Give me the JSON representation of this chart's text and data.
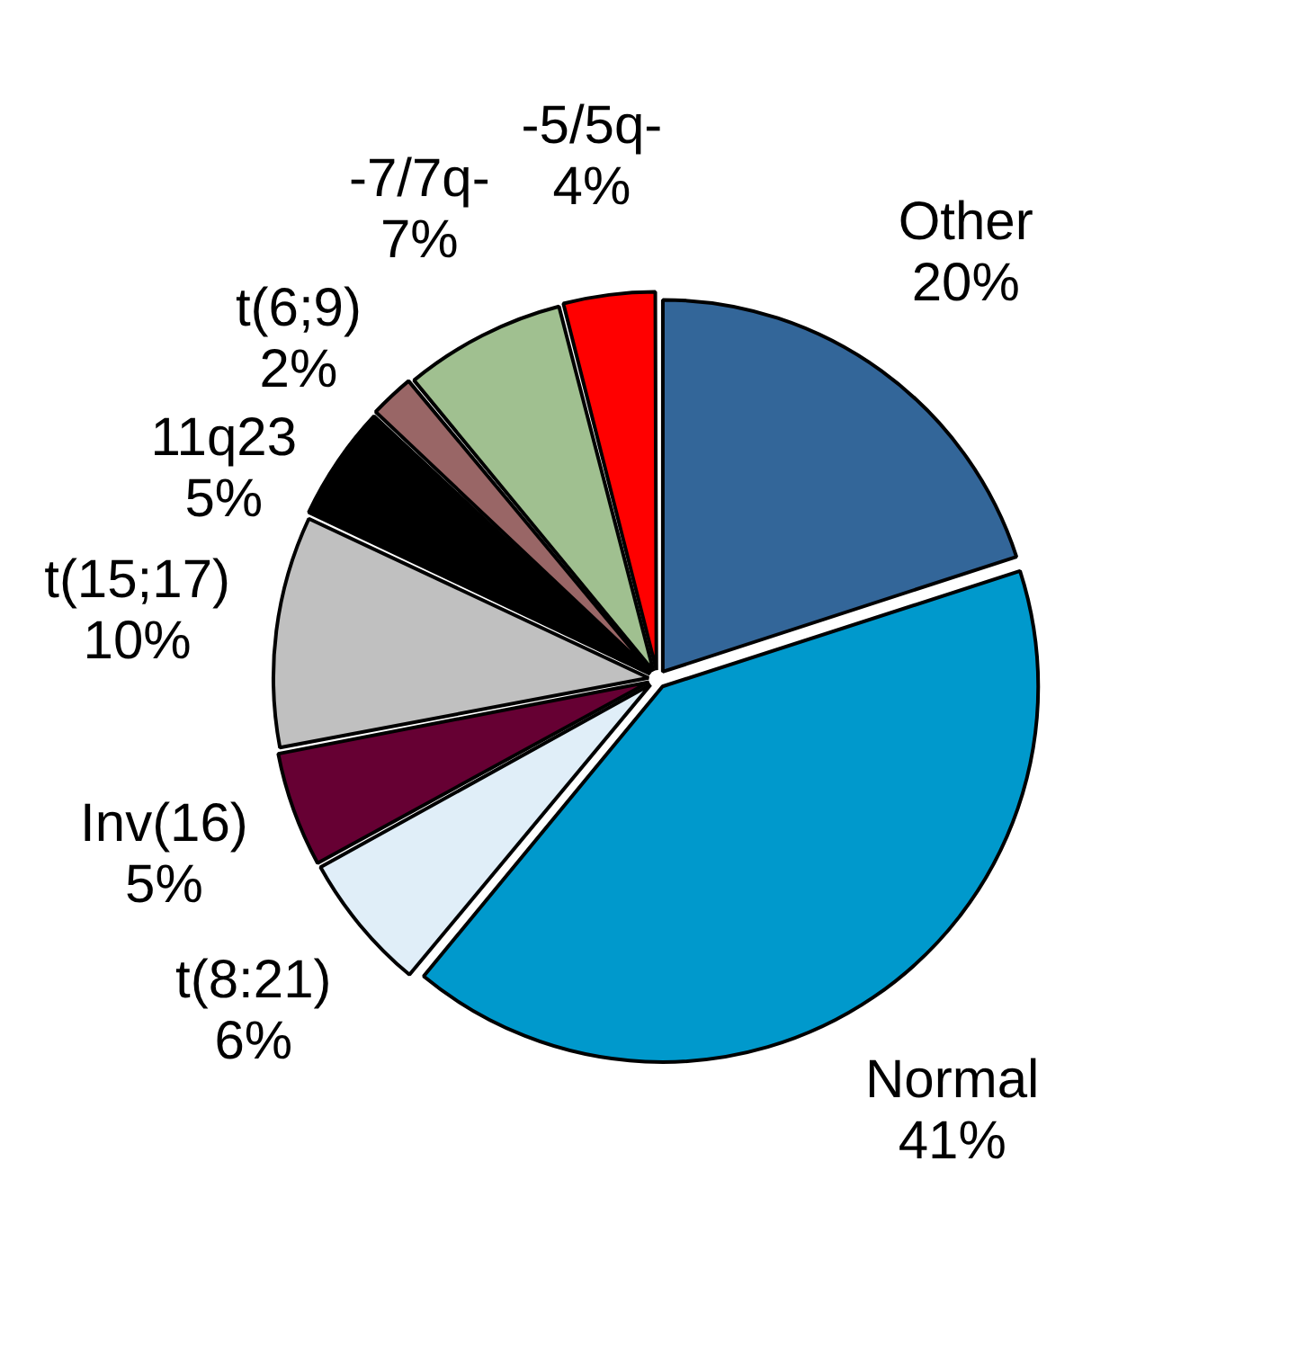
{
  "chart_data": {
    "type": "pie",
    "categories": [
      "Other",
      "Normal",
      "t(8:21)",
      "Inv(16)",
      "t(15;17)",
      "11q23",
      "t(6;9)",
      "-7/7q-",
      "-5/5q-"
    ],
    "values": [
      20,
      41,
      6,
      5,
      10,
      5,
      2,
      7,
      4
    ],
    "colors": [
      "#336699",
      "#0099cc",
      "#e0eef8",
      "#660033",
      "#c0c0c0",
      "#000000",
      "#996666",
      "#a0c090",
      "#ff0000"
    ],
    "value_labels": [
      "20%",
      "41%",
      "6%",
      "5%",
      "10%",
      "5%",
      "2%",
      "7%",
      "4%"
    ],
    "legend": false
  }
}
